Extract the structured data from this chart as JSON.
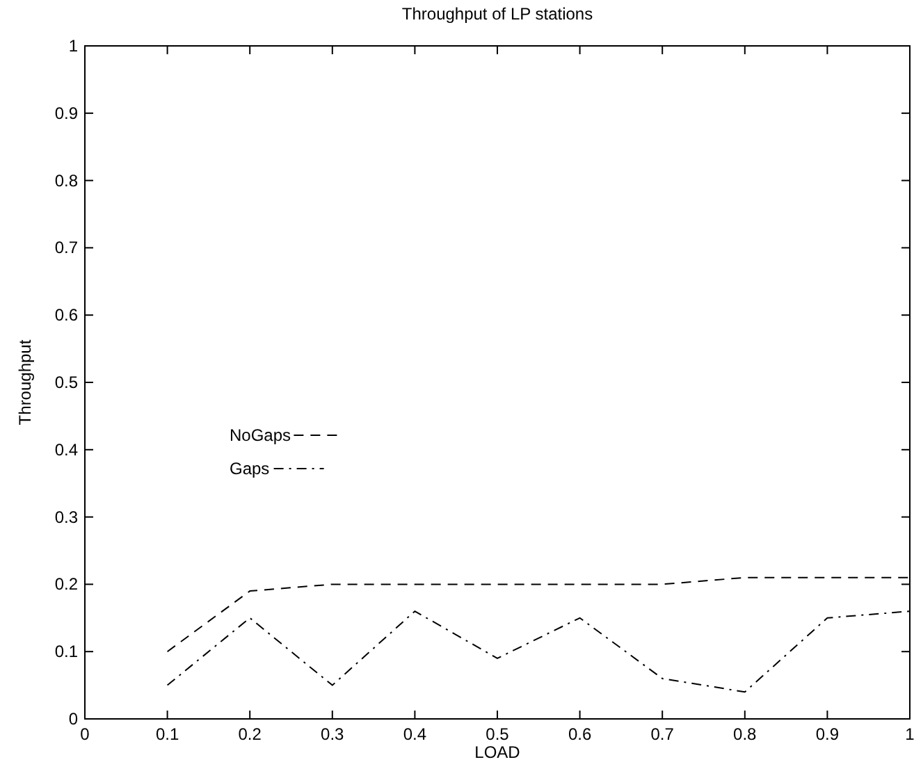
{
  "chart_data": {
    "type": "line",
    "title": "Throughput of LP stations",
    "xlabel": "LOAD",
    "ylabel": "Throughput",
    "x": [
      0.1,
      0.2,
      0.3,
      0.4,
      0.5,
      0.6,
      0.7,
      0.8,
      0.9,
      1
    ],
    "series": [
      {
        "name": "NoGaps",
        "color": "#000000",
        "line_style": "dashed",
        "values": [
          0.1,
          0.19,
          0.2,
          0.2,
          0.2,
          0.2,
          0.2,
          0.21,
          0.21,
          0.21
        ]
      },
      {
        "name": "Gaps",
        "color": "#000000",
        "line_style": "dashdot",
        "values": [
          0.05,
          0.15,
          0.05,
          0.16,
          0.09,
          0.15,
          0.06,
          0.04,
          0.15,
          0.16
        ]
      }
    ],
    "xlim": [
      0,
      1
    ],
    "xticks": [
      0,
      0.1,
      0.2,
      0.3,
      0.4,
      0.5,
      0.6,
      0.7,
      0.8,
      0.9,
      1
    ],
    "ylim": [
      0,
      1
    ],
    "yticks": [
      0,
      0.1,
      0.2,
      0.3,
      0.4,
      0.5,
      0.6,
      0.7,
      0.8,
      0.9,
      1
    ],
    "grid": false,
    "legend": "left",
    "marker": "none"
  }
}
